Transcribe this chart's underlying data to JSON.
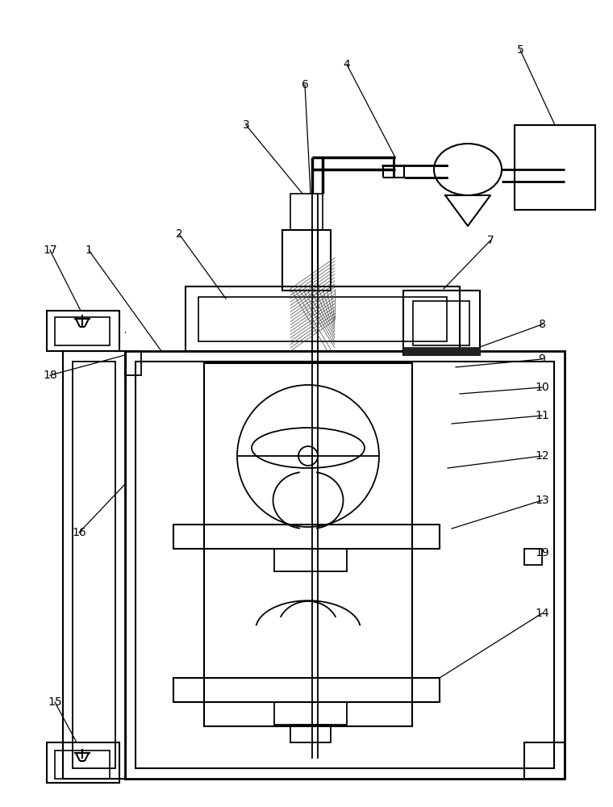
{
  "bg_color": "#ffffff",
  "line_color": "#000000",
  "fig_width": 7.6,
  "fig_height": 10.0
}
